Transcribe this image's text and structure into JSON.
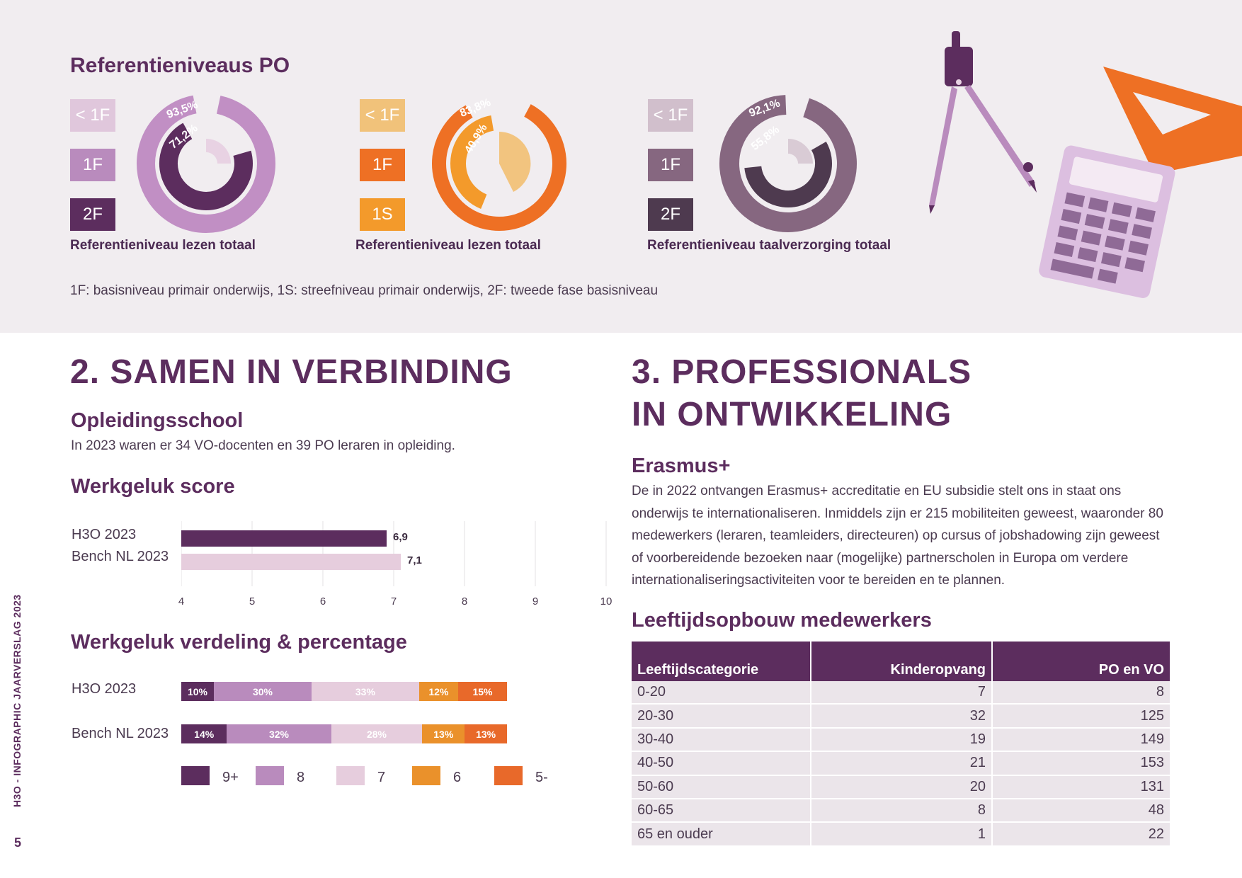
{
  "referentie": {
    "title": "Referentieniveaus PO",
    "charts": [
      {
        "caption": "Referentieniveau lezen totaal",
        "legend": [
          "< 1F",
          "1F",
          "2F"
        ],
        "legend_colors": [
          "#e0c7dc",
          "#b98bbd",
          "#5c2d5e"
        ],
        "outer_label": "93,5%",
        "inner_label": "71,2%",
        "colors": {
          "outer": "#c18fc4",
          "inner": "#5c2d5e",
          "core": "#e8d2e3"
        }
      },
      {
        "caption": "Referentieniveau lezen totaal",
        "legend": [
          "< 1F",
          "1F",
          "1S"
        ],
        "legend_colors": [
          "#f1c27a",
          "#ee7024",
          "#f39a2b"
        ],
        "outer_label": "83,8%",
        "inner_label": "40,9%",
        "colors": {
          "outer": "#ee7024",
          "inner": "#f39a2b",
          "core": "#f2c47f"
        }
      },
      {
        "caption": "Referentieniveau taalverzorging totaal",
        "legend": [
          "< 1F",
          "1F",
          "2F"
        ],
        "legend_colors": [
          "#d1bfcc",
          "#866780",
          "#4e3a4f"
        ],
        "outer_label": "92,1%",
        "inner_label": "55,8%",
        "colors": {
          "outer": "#866780",
          "inner": "#4e3a4f",
          "core": "#d9cbd5"
        }
      }
    ],
    "footnote": "1F: basisniveau primair onderwijs, 1S: streefniveau primair onderwijs, 2F: tweede fase basisniveau"
  },
  "section2": {
    "title": "2. SAMEN IN VERBINDING",
    "opleiding_title": "Opleidingsschool",
    "opleiding_text": "In 2023 waren er 34 VO-docenten en 39 PO leraren in opleiding.",
    "score_title": "Werkgeluk score",
    "verdeling_title": "Werkgeluk verdeling & percentage"
  },
  "chart_data": [
    {
      "type": "bar",
      "orientation": "horizontal",
      "title": "Werkgeluk score",
      "categories": [
        "H3O 2023",
        "Bench NL 2023"
      ],
      "values": [
        6.9,
        7.1
      ],
      "value_labels": [
        "6,9",
        "7,1"
      ],
      "xlim": [
        4,
        10
      ],
      "ticks": [
        "4",
        "5",
        "6",
        "7",
        "8",
        "9",
        "10"
      ],
      "colors": [
        "#5c2d5e",
        "#e6cddd"
      ],
      "grid": true
    },
    {
      "type": "bar",
      "orientation": "horizontal",
      "stacked": true,
      "title": "Werkgeluk verdeling & percentage",
      "categories": [
        "H3O 2023",
        "Bench NL 2023"
      ],
      "series": [
        {
          "name": "9+",
          "values": [
            10,
            14
          ],
          "color": "#5c2d5e"
        },
        {
          "name": "8",
          "values": [
            30,
            32
          ],
          "color": "#b98bbd"
        },
        {
          "name": "7",
          "values": [
            33,
            28
          ],
          "color": "#e6cddd"
        },
        {
          "name": "6",
          "values": [
            12,
            13
          ],
          "color": "#ea912b"
        },
        {
          "name": "5-",
          "values": [
            15,
            13
          ],
          "color": "#e8692a"
        }
      ],
      "legend_placement": "bottom"
    }
  ],
  "section3": {
    "title_line1": "3. PROFESSIONALS",
    "title_line2": "IN ONTWIKKELING",
    "erasmus_title": "Erasmus+",
    "erasmus_lines": [
      "De in 2022 ontvangen Erasmus+ accreditatie en EU subsidie stelt ons in staat ons",
      "onderwijs te internationaliseren. Inmiddels zijn er 215 mobiliteiten geweest, waaronder 80",
      "medewerkers (leraren, teamleiders, directeuren) op cursus of jobshadowing zijn geweest",
      "of voorbereidende bezoeken naar (mogelijke) partnerscholen in Europa om verdere",
      "internationaliseringsactiviteiten voor te bereiden en te plannen."
    ],
    "leeftijd_title": "Leeftijdsopbouw medewerkers",
    "table": {
      "headers": [
        "Leeftijdscategorie",
        "Kinderopvang",
        "PO en VO"
      ],
      "rows": [
        [
          "0-20",
          "7",
          "8"
        ],
        [
          "20-30",
          "32",
          "125"
        ],
        [
          "30-40",
          "19",
          "149"
        ],
        [
          "40-50",
          "21",
          "153"
        ],
        [
          "50-60",
          "20",
          "131"
        ],
        [
          "60-65",
          "8",
          "48"
        ],
        [
          "65 en ouder",
          "1",
          "22"
        ]
      ]
    }
  },
  "sidebar_text": "H3O - INFOGRAPHIC JAARVERSLAG 2023",
  "page_number": "5"
}
